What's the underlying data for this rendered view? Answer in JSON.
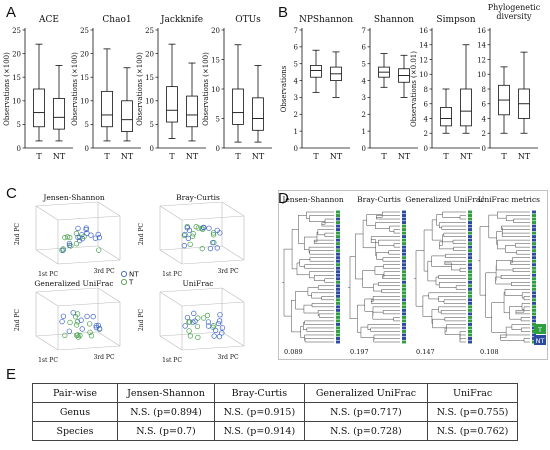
{
  "panel_letters": {
    "a": "A",
    "b": "B",
    "c": "C",
    "d": "D",
    "e": "E"
  },
  "chart_data": [
    {
      "type": "box",
      "title": "ACE",
      "ylabel": "Observations (×100)",
      "ylim": [
        0,
        25
      ],
      "yticks": [
        0,
        5,
        10,
        15,
        20,
        25
      ],
      "categories": [
        "T",
        "NT"
      ],
      "boxes": [
        {
          "min": 1.5,
          "q1": 4.5,
          "median": 7.5,
          "q3": 12.5,
          "max": 22
        },
        {
          "min": 1.5,
          "q1": 4,
          "median": 6.5,
          "q3": 10.5,
          "max": 17.5
        }
      ]
    },
    {
      "type": "box",
      "title": "Chao1",
      "ylabel": "Observations (×100)",
      "ylim": [
        0,
        25
      ],
      "yticks": [
        0,
        5,
        10,
        15,
        20,
        25
      ],
      "categories": [
        "T",
        "NT"
      ],
      "boxes": [
        {
          "min": 1.5,
          "q1": 4.5,
          "median": 7,
          "q3": 12,
          "max": 21
        },
        {
          "min": 1.5,
          "q1": 3.5,
          "median": 6,
          "q3": 10,
          "max": 17
        }
      ]
    },
    {
      "type": "box",
      "title": "Jackknife",
      "ylabel": "Observations (×100)",
      "ylim": [
        0,
        25
      ],
      "yticks": [
        0,
        5,
        10,
        15,
        20,
        25
      ],
      "categories": [
        "T",
        "NT"
      ],
      "boxes": [
        {
          "min": 2,
          "q1": 5.5,
          "median": 8,
          "q3": 13,
          "max": 22
        },
        {
          "min": 1.5,
          "q1": 4.5,
          "median": 7,
          "q3": 11,
          "max": 18
        }
      ]
    },
    {
      "type": "box",
      "title": "OTUs",
      "ylabel": "Observations (×100)",
      "ylim": [
        0,
        20
      ],
      "yticks": [
        0,
        5,
        10,
        15,
        20
      ],
      "categories": [
        "T",
        "NT"
      ],
      "boxes": [
        {
          "min": 1,
          "q1": 4,
          "median": 6,
          "q3": 10,
          "max": 17.5
        },
        {
          "min": 1,
          "q1": 3,
          "median": 5,
          "q3": 8.5,
          "max": 14
        }
      ]
    },
    {
      "type": "box",
      "title": "NPShannon",
      "ylabel": "Observations",
      "ylim": [
        0,
        7
      ],
      "yticks": [
        0,
        1,
        2,
        3,
        4,
        5,
        6,
        7
      ],
      "categories": [
        "T",
        "NT"
      ],
      "boxes": [
        {
          "min": 3.3,
          "q1": 4.2,
          "median": 4.6,
          "q3": 4.9,
          "max": 5.8
        },
        {
          "min": 3.0,
          "q1": 4.0,
          "median": 4.4,
          "q3": 4.8,
          "max": 5.7
        }
      ]
    },
    {
      "type": "box",
      "title": "Shannon",
      "ylabel": "",
      "ylim": [
        0,
        7
      ],
      "yticks": [
        0,
        1,
        2,
        3,
        4,
        5,
        6,
        7
      ],
      "categories": [
        "T",
        "NT"
      ],
      "boxes": [
        {
          "min": 3.6,
          "q1": 4.2,
          "median": 4.5,
          "q3": 4.8,
          "max": 5.6
        },
        {
          "min": 3.0,
          "q1": 3.9,
          "median": 4.3,
          "q3": 4.7,
          "max": 5.5
        }
      ]
    },
    {
      "type": "box",
      "title": "Simpson",
      "ylabel": "Observations (×0.01)",
      "ylim": [
        0,
        16
      ],
      "yticks": [
        0,
        2,
        4,
        6,
        8,
        10,
        12,
        14,
        16
      ],
      "categories": [
        "T",
        "NT"
      ],
      "boxes": [
        {
          "min": 2,
          "q1": 3,
          "median": 4,
          "q3": 5.5,
          "max": 8
        },
        {
          "min": 2,
          "q1": 3,
          "median": 5,
          "q3": 8,
          "max": 14
        }
      ]
    },
    {
      "type": "box",
      "title": "Phylogenetic diversity",
      "title_lines": [
        "Phylogenetic",
        "diversity"
      ],
      "ylabel": "",
      "ylim": [
        0,
        16
      ],
      "yticks": [
        0,
        2,
        4,
        6,
        8,
        10,
        12,
        14,
        16
      ],
      "categories": [
        "T",
        "NT"
      ],
      "boxes": [
        {
          "min": 2,
          "q1": 4.5,
          "median": 6.5,
          "q3": 8.5,
          "max": 11
        },
        {
          "min": 2,
          "q1": 4,
          "median": 6,
          "q3": 8,
          "max": 13
        }
      ]
    }
  ],
  "pcoa": {
    "plots": [
      {
        "title": "Jensen-Shannon"
      },
      {
        "title": "Bray-Curtis"
      },
      {
        "title": "Generalized UniFrac"
      },
      {
        "title": "UniFrac"
      }
    ],
    "axis_labels": {
      "x": "1st PC",
      "y": "2nd PC",
      "z": "3rd PC"
    },
    "legend": [
      {
        "label": "NT",
        "color": "#3a5fcd"
      },
      {
        "label": "T",
        "color": "#43a047"
      }
    ]
  },
  "trees": {
    "titles": [
      "Jensen-Shannon",
      "Bray-Curtis",
      "Generalized UniFrac",
      "UniFrac metrics"
    ],
    "scales": [
      "0.089",
      "0.197",
      "0.147",
      "0.108"
    ],
    "legend": [
      {
        "label": "T",
        "color": "#2e9e3e"
      },
      {
        "label": "NT",
        "color": "#2b4aa0"
      }
    ]
  },
  "table": {
    "headers": [
      "Pair-wise",
      "Jensen-Shannon",
      "Bray-Curtis",
      "Generalized UniFrac",
      "UniFrac"
    ],
    "rows": [
      [
        "Genus",
        "N.S. (p=0.894)",
        "N.S. (p=0.915)",
        "N.S. (p=0.717)",
        "N.S. (p=0.755)"
      ],
      [
        "Species",
        "N.S. (p=0.7)",
        "N.S. (p=0.914)",
        "N.S. (p=0.728)",
        "N.S. (p=0.762)"
      ]
    ]
  }
}
